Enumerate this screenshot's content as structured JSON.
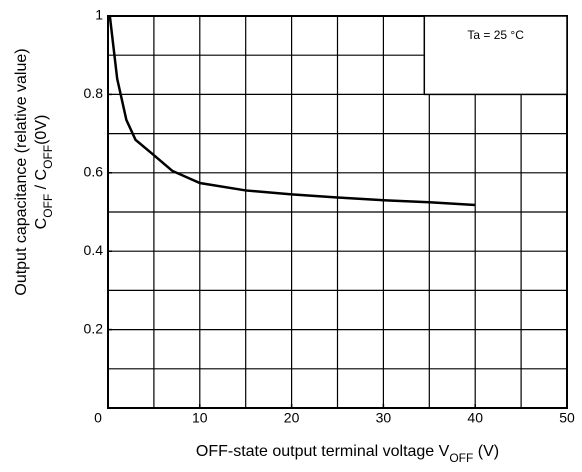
{
  "chart_data": {
    "type": "line",
    "x_label": [
      {
        "text": "OFF-state output terminal voltage V",
        "sub": false
      },
      {
        "text": "OFF",
        "sub": true
      },
      {
        "text": " (V)",
        "sub": false
      }
    ],
    "y_label": [
      [
        {
          "text": "Output capacitance (relative value)",
          "sub": false
        }
      ],
      [
        {
          "text": "C",
          "sub": false
        },
        {
          "text": "OFF",
          "sub": true
        },
        {
          "text": " / C",
          "sub": false
        },
        {
          "text": "OFF",
          "sub": true
        },
        {
          "text": "(0V)",
          "sub": false
        }
      ]
    ],
    "annotation": "Ta = 25 °C",
    "xlim": [
      0,
      50
    ],
    "ylim": [
      0,
      1
    ],
    "xticks": [
      0,
      10,
      20,
      30,
      40,
      50
    ],
    "yticks": [
      0.2,
      0.4,
      0.6,
      0.8,
      1
    ],
    "xgrid": [
      5,
      10,
      15,
      20,
      25,
      30,
      35,
      40,
      45
    ],
    "ygrid": [
      0.1,
      0.2,
      0.3,
      0.4,
      0.5,
      0.6,
      0.7,
      0.8,
      0.9
    ],
    "grid_color": "#000000",
    "series": [
      {
        "name": null,
        "color": "#000000",
        "x": [
          0.2,
          1,
          2,
          3,
          5,
          7,
          10,
          15,
          20,
          25,
          30,
          35,
          40
        ],
        "values": [
          1.0,
          0.84,
          0.735,
          0.684,
          0.645,
          0.605,
          0.574,
          0.555,
          0.545,
          0.537,
          0.53,
          0.525,
          0.518
        ]
      }
    ]
  }
}
